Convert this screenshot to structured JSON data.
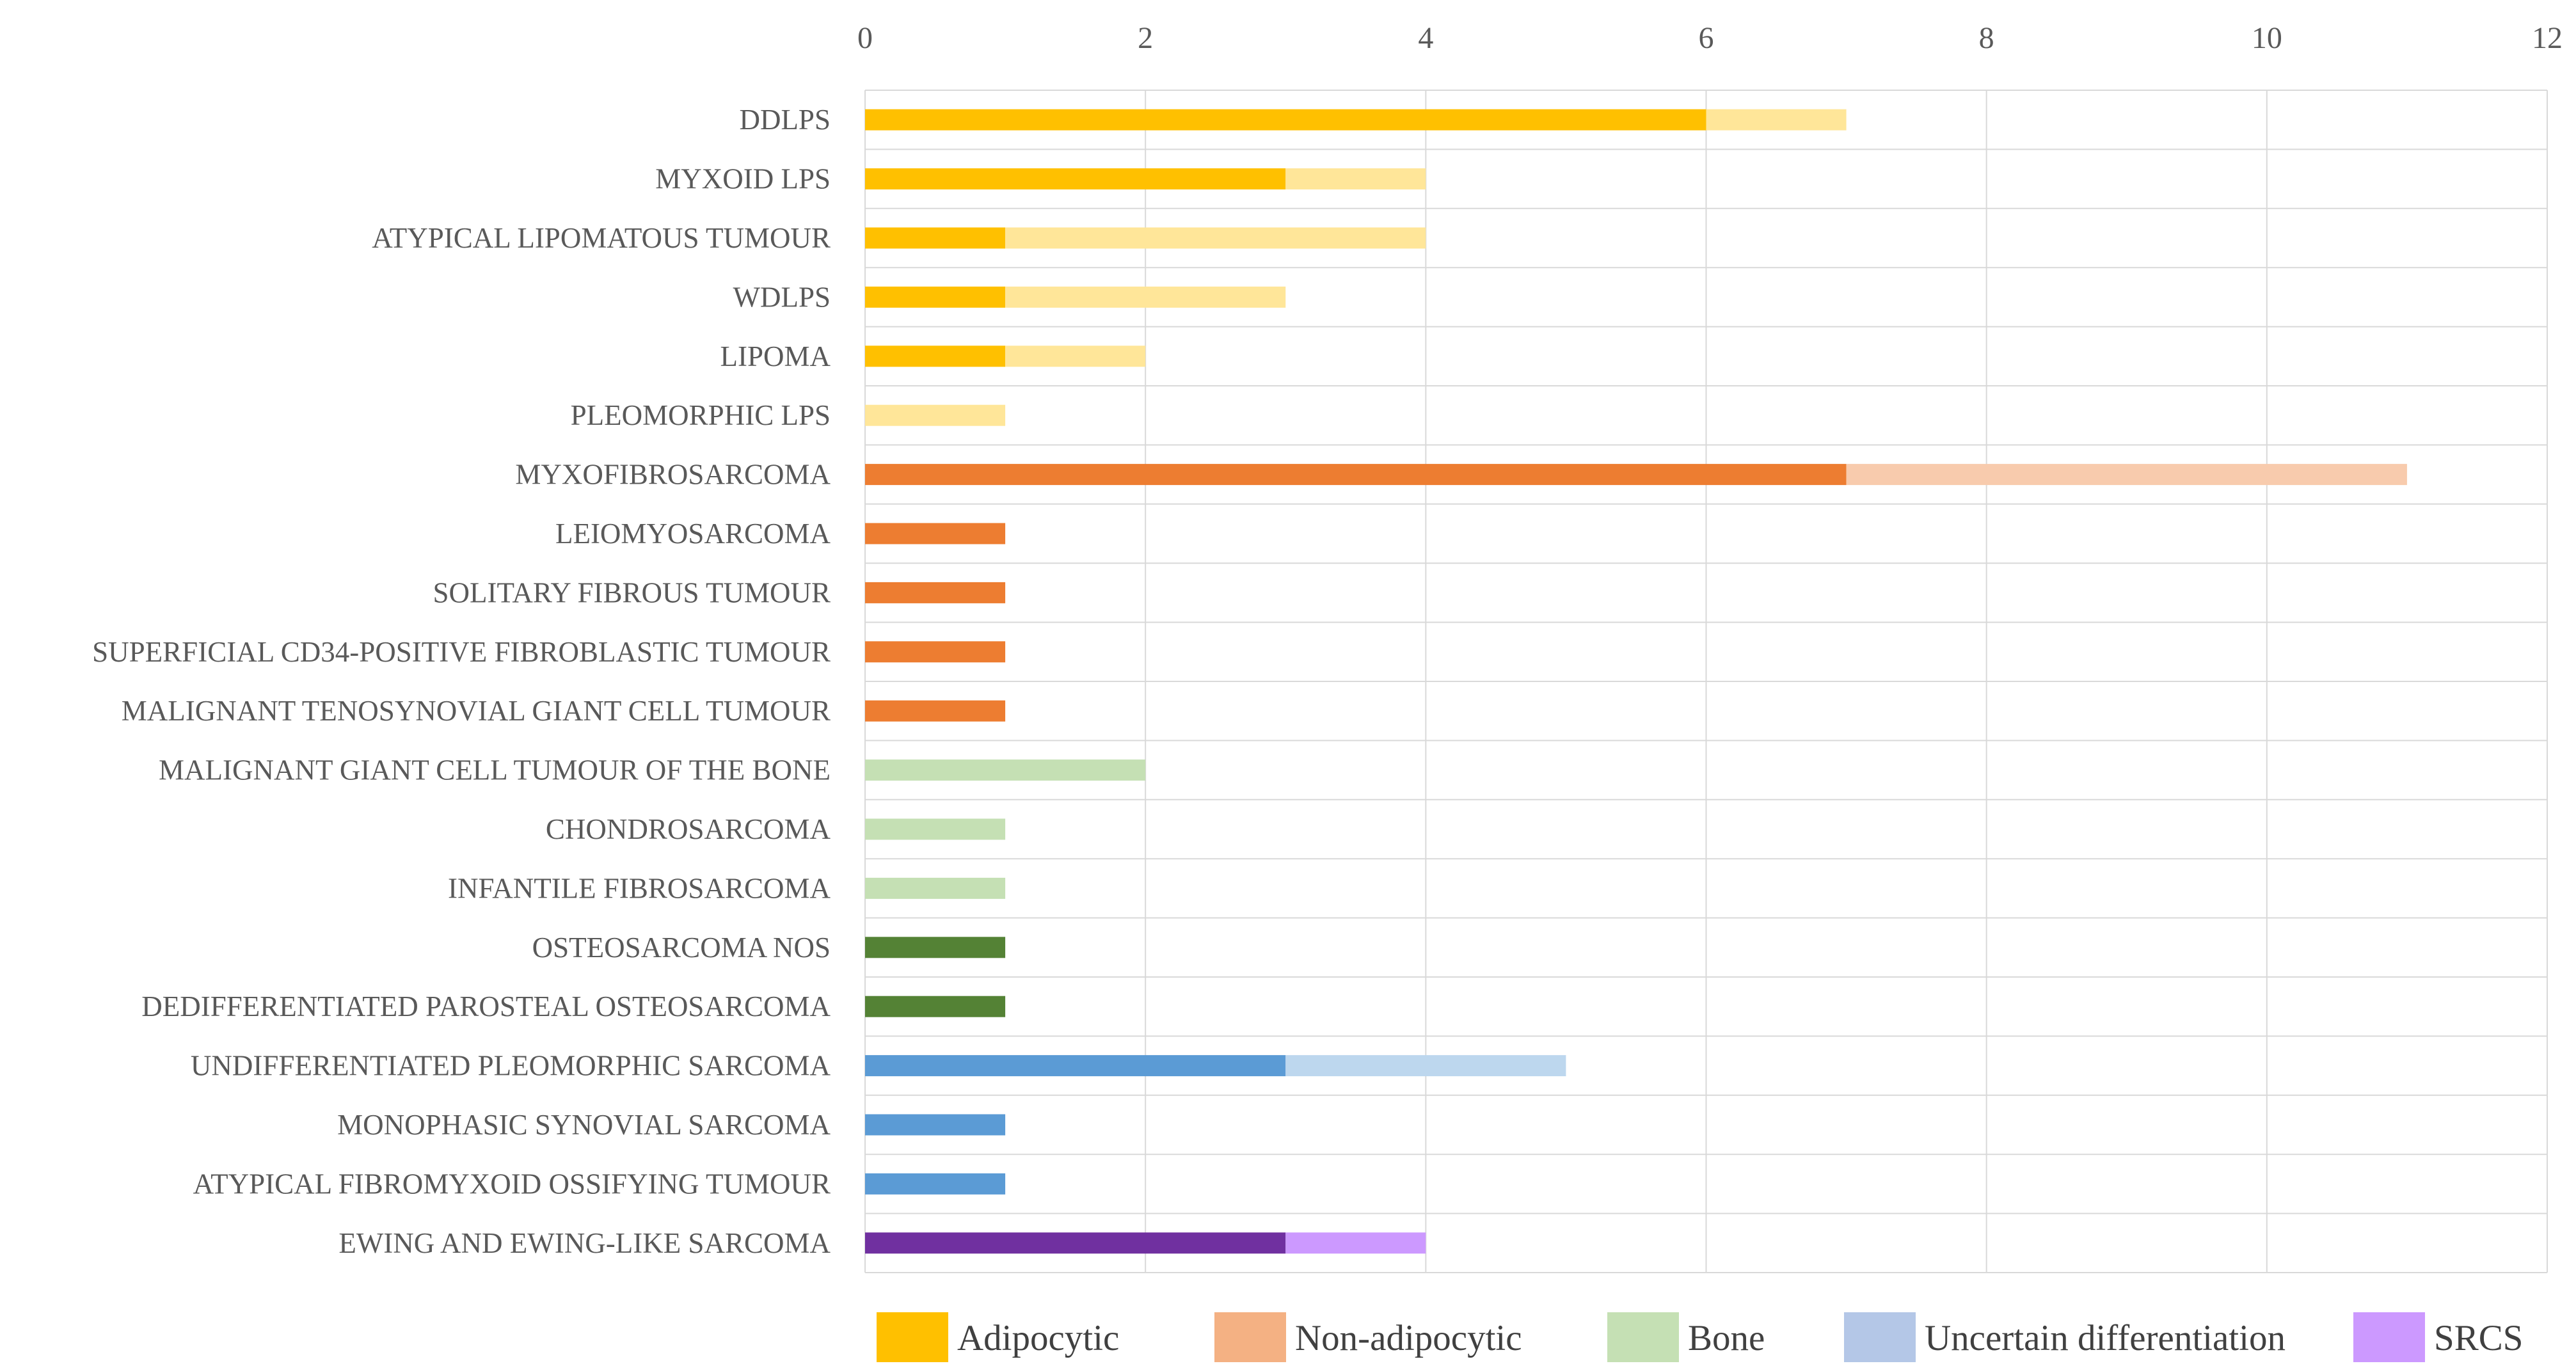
{
  "chart_data": {
    "type": "bar",
    "orientation": "horizontal",
    "stacked": true,
    "title": "",
    "xlabel": "",
    "ylabel": "",
    "xlim": [
      0,
      12
    ],
    "x_ticks": [
      0,
      2,
      4,
      6,
      8,
      10,
      12
    ],
    "x_axis_position": "top",
    "grid": true,
    "legend_position": "bottom",
    "legend": [
      {
        "name": "Adipocytic",
        "color": "#FFC000"
      },
      {
        "name": "Non-adipocytic",
        "color": "#F4B183"
      },
      {
        "name": "Bone",
        "color": "#C5E0B4"
      },
      {
        "name": "Uncertain differentiation",
        "color": "#B4C7E7"
      },
      {
        "name": "SRCS",
        "color": "#CC99FF"
      }
    ],
    "categories": [
      {
        "label": "DDLPS",
        "segments": [
          {
            "value": 6,
            "color": "#FFC000"
          },
          {
            "value": 1,
            "color": "#FFE699"
          }
        ]
      },
      {
        "label": "MYXOID LPS",
        "segments": [
          {
            "value": 3,
            "color": "#FFC000"
          },
          {
            "value": 1,
            "color": "#FFE699"
          }
        ]
      },
      {
        "label": "ATYPICAL LIPOMATOUS TUMOUR",
        "segments": [
          {
            "value": 1,
            "color": "#FFC000"
          },
          {
            "value": 3,
            "color": "#FFE699"
          }
        ]
      },
      {
        "label": "WDLPS",
        "segments": [
          {
            "value": 1,
            "color": "#FFC000"
          },
          {
            "value": 2,
            "color": "#FFE699"
          }
        ]
      },
      {
        "label": "LIPOMA",
        "segments": [
          {
            "value": 1,
            "color": "#FFC000"
          },
          {
            "value": 1,
            "color": "#FFE699"
          }
        ]
      },
      {
        "label": "PLEOMORPHIC LPS",
        "segments": [
          {
            "value": 0,
            "color": "#FFC000"
          },
          {
            "value": 1,
            "color": "#FFE699"
          }
        ]
      },
      {
        "label": "MYXOFIBROSARCOMA",
        "segments": [
          {
            "value": 7,
            "color": "#ED7D31"
          },
          {
            "value": 4,
            "color": "#F8CBAD"
          }
        ]
      },
      {
        "label": "LEIOMYOSARCOMA",
        "segments": [
          {
            "value": 1,
            "color": "#ED7D31"
          }
        ]
      },
      {
        "label": "SOLITARY FIBROUS TUMOUR",
        "segments": [
          {
            "value": 1,
            "color": "#ED7D31"
          }
        ]
      },
      {
        "label": "SUPERFICIAL CD34-POSITIVE FIBROBLASTIC TUMOUR",
        "segments": [
          {
            "value": 1,
            "color": "#ED7D31"
          }
        ]
      },
      {
        "label": "MALIGNANT TENOSYNOVIAL GIANT CELL TUMOUR",
        "segments": [
          {
            "value": 1,
            "color": "#ED7D31"
          }
        ]
      },
      {
        "label": "MALIGNANT GIANT CELL TUMOUR OF THE BONE",
        "segments": [
          {
            "value": 2,
            "color": "#C5E0B4"
          }
        ]
      },
      {
        "label": "CHONDROSARCOMA",
        "segments": [
          {
            "value": 1,
            "color": "#C5E0B4"
          }
        ]
      },
      {
        "label": "INFANTILE FIBROSARCOMA",
        "segments": [
          {
            "value": 1,
            "color": "#C5E0B4"
          }
        ]
      },
      {
        "label": "OSTEOSARCOMA NOS",
        "segments": [
          {
            "value": 1,
            "color": "#548235"
          }
        ]
      },
      {
        "label": "DEDIFFERENTIATED PAROSTEAL OSTEOSARCOMA",
        "segments": [
          {
            "value": 1,
            "color": "#548235"
          }
        ]
      },
      {
        "label": "UNDIFFERENTIATED PLEOMORPHIC SARCOMA",
        "segments": [
          {
            "value": 3,
            "color": "#5B9BD5"
          },
          {
            "value": 2,
            "color": "#BDD7EE"
          }
        ]
      },
      {
        "label": "MONOPHASIC SYNOVIAL SARCOMA",
        "segments": [
          {
            "value": 1,
            "color": "#5B9BD5"
          }
        ]
      },
      {
        "label": "ATYPICAL FIBROMYXOID OSSIFYING TUMOUR",
        "segments": [
          {
            "value": 1,
            "color": "#5B9BD5"
          }
        ]
      },
      {
        "label": "EWING AND EWING-LIKE SARCOMA",
        "segments": [
          {
            "value": 3,
            "color": "#7030A0"
          },
          {
            "value": 1,
            "color": "#CC99FF"
          }
        ]
      }
    ]
  }
}
